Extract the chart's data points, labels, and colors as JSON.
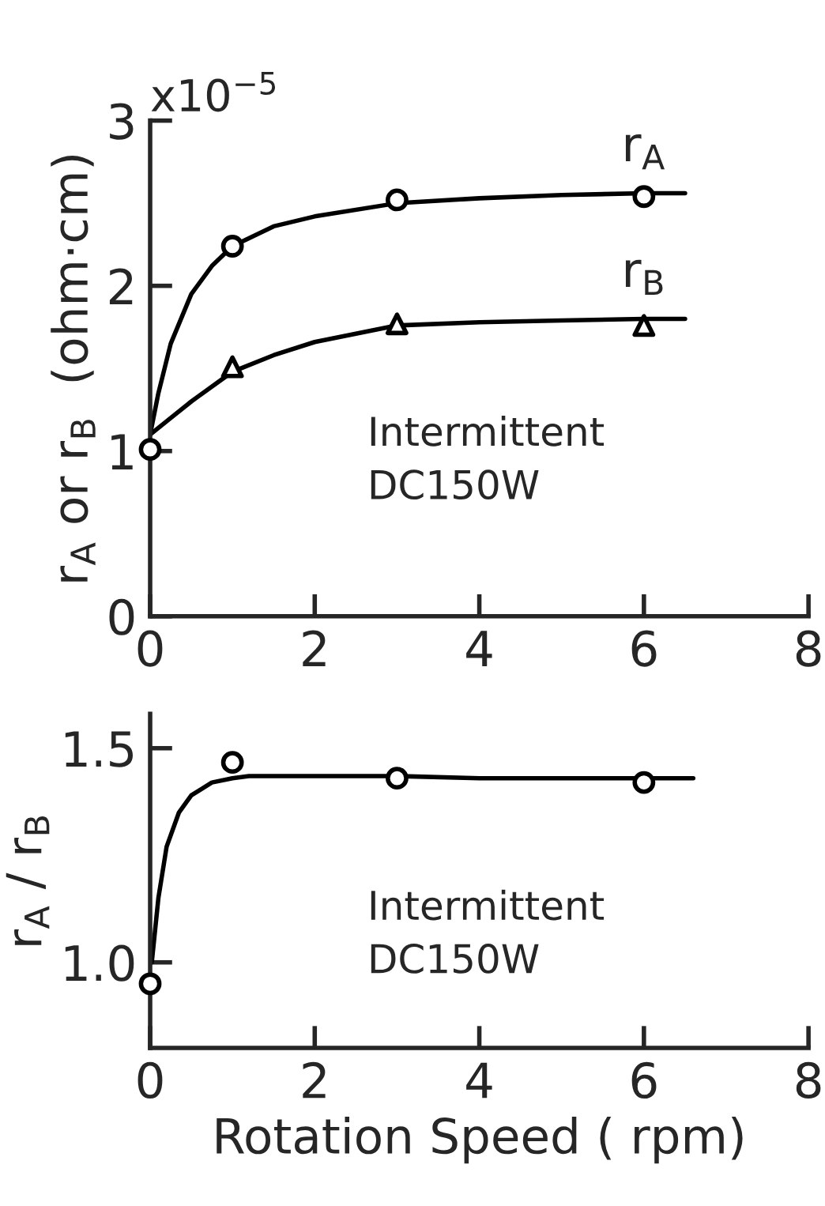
{
  "chart_data": [
    {
      "type": "line",
      "ylabel": "r$_{A}$ or r$_{B}$  (ohm·cm)",
      "annotations": [
        "x10$^{−5}$",
        "Intermittent\nDC150W"
      ],
      "xlim": [
        0,
        8
      ],
      "xticks": [
        0,
        2,
        4,
        6,
        8
      ],
      "ylim": [
        0,
        3
      ],
      "yticks": [
        0,
        1,
        2,
        3
      ],
      "grid": false,
      "legend": false,
      "series": [
        {
          "name": "r$_{A}$",
          "color": "#000000",
          "x": [
            0,
            0.1,
            0.25,
            0.5,
            0.75,
            1,
            1.5,
            2,
            3,
            4,
            5,
            6,
            6.5
          ],
          "values": [
            1.1,
            1.35,
            1.65,
            1.95,
            2.12,
            2.24,
            2.36,
            2.42,
            2.5,
            2.53,
            2.55,
            2.56,
            2.56
          ]
        },
        {
          "type": "scatter",
          "marker": "circle",
          "color": "#000000",
          "x": [
            0,
            1,
            3,
            6
          ],
          "values": [
            1.01,
            2.24,
            2.52,
            2.54
          ]
        },
        {
          "name": "r$_{B}$",
          "color": "#000000",
          "x": [
            0,
            0.25,
            0.5,
            1,
            1.5,
            2,
            3,
            4,
            5,
            6,
            6.5
          ],
          "values": [
            1.1,
            1.2,
            1.3,
            1.48,
            1.58,
            1.66,
            1.76,
            1.78,
            1.79,
            1.8,
            1.8
          ]
        },
        {
          "type": "scatter",
          "marker": "triangle",
          "color": "#000000",
          "x": [
            1,
            3,
            6
          ],
          "values": [
            1.51,
            1.77,
            1.76
          ]
        }
      ]
    },
    {
      "type": "line",
      "xlabel": "Rotation Speed ( rpm)",
      "ylabel": "r$_{A}$ / r$_{B}$",
      "annotations": [
        "Intermittent\nDC150W"
      ],
      "xlim": [
        0,
        8
      ],
      "xticks": [
        0,
        2,
        4,
        6,
        8
      ],
      "ylim": [
        0.8,
        1.58
      ],
      "yticks": [
        {
          "value": 1.0,
          "label": "1.0"
        },
        1.5
      ],
      "grid": false,
      "legend": false,
      "series": [
        {
          "color": "#000000",
          "x": [
            0.02,
            0.1,
            0.2,
            0.35,
            0.5,
            0.75,
            1,
            1.2,
            2,
            3,
            4,
            5,
            6,
            6.6
          ],
          "values": [
            1.0,
            1.15,
            1.27,
            1.35,
            1.39,
            1.42,
            1.43,
            1.435,
            1.435,
            1.435,
            1.43,
            1.43,
            1.43,
            1.43
          ]
        },
        {
          "type": "scatter",
          "marker": "circle",
          "color": "#000000",
          "x": [
            0,
            1,
            3,
            6
          ],
          "values": [
            0.95,
            1.467,
            1.43,
            1.42
          ]
        }
      ]
    }
  ]
}
